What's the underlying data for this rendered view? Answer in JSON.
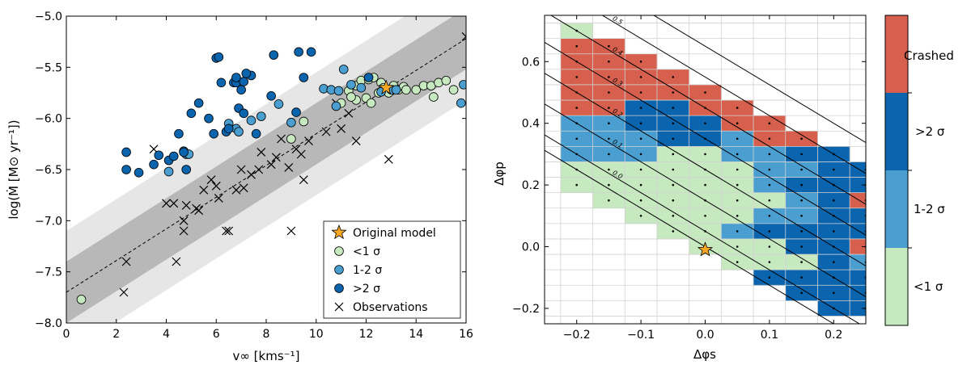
{
  "colors": {
    "lt1": "#c7e9c0",
    "s12": "#4a9fd0",
    "gt2": "#0a64ae",
    "crashed": "#d6604d",
    "band_outer": "#e6e6e6",
    "band_inner": "#b8b8b8",
    "star": "#f6a623"
  },
  "chart_data": [
    {
      "type": "scatter",
      "title": "",
      "xlabel": "v∞ [kms⁻¹]",
      "ylabel": "log(Ṁ [M⊙ yr⁻¹])",
      "xlim": [
        0,
        16
      ],
      "ylim": [
        -8.0,
        -5.0
      ],
      "xticks": [
        "0",
        "2",
        "4",
        "6",
        "8",
        "10",
        "12",
        "14",
        "16"
      ],
      "yticks": [
        "−8.0",
        "−7.5",
        "−7.0",
        "−6.5",
        "−6.0",
        "−5.5",
        "−5.0"
      ],
      "fit_line": {
        "x": [
          0,
          16
        ],
        "y": [
          -7.7,
          -5.22
        ]
      },
      "bands": {
        "inner_halfwidth": 0.3,
        "outer_halfwidth": 0.6
      },
      "legend": {
        "location": "lower right",
        "entries": [
          "Original model",
          "<1 σ",
          "1-2 σ",
          ">2 σ",
          "Observations"
        ]
      },
      "series": [
        {
          "name": "Original model",
          "marker": "star",
          "points": [
            [
              12.8,
              -5.7
            ]
          ]
        },
        {
          "name": "<1 σ",
          "marker": "circle",
          "points": [
            [
              0.6,
              -7.77
            ],
            [
              9.0,
              -6.2
            ],
            [
              9.5,
              -6.03
            ],
            [
              11.3,
              -5.73
            ],
            [
              11.6,
              -5.68
            ],
            [
              11.8,
              -5.63
            ],
            [
              12.0,
              -5.8
            ],
            [
              12.1,
              -5.62
            ],
            [
              12.3,
              -5.6
            ],
            [
              12.5,
              -5.75
            ],
            [
              12.6,
              -5.65
            ],
            [
              12.7,
              -5.7
            ],
            [
              13.0,
              -5.73
            ],
            [
              13.1,
              -5.68
            ],
            [
              13.3,
              -5.72
            ],
            [
              13.5,
              -5.69
            ],
            [
              13.6,
              -5.72
            ],
            [
              14.0,
              -5.72
            ],
            [
              14.3,
              -5.68
            ],
            [
              14.6,
              -5.68
            ],
            [
              14.7,
              -5.79
            ],
            [
              14.9,
              -5.65
            ],
            [
              15.2,
              -5.63
            ],
            [
              15.5,
              -5.72
            ],
            [
              11.0,
              -5.85
            ],
            [
              11.6,
              -5.82
            ],
            [
              12.2,
              -5.85
            ],
            [
              11.4,
              -5.79
            ],
            [
              12.9,
              -5.75
            ]
          ]
        },
        {
          "name": "1-2 σ",
          "marker": "circle",
          "points": [
            [
              4.1,
              -6.52
            ],
            [
              4.7,
              -6.32
            ],
            [
              4.8,
              -6.35
            ],
            [
              4.9,
              -6.35
            ],
            [
              6.5,
              -6.05
            ],
            [
              6.8,
              -6.1
            ],
            [
              6.9,
              -6.13
            ],
            [
              7.4,
              -6.02
            ],
            [
              7.8,
              -5.98
            ],
            [
              8.5,
              -5.86
            ],
            [
              9.0,
              -6.04
            ],
            [
              10.3,
              -5.71
            ],
            [
              10.6,
              -5.72
            ],
            [
              10.9,
              -5.73
            ],
            [
              11.1,
              -5.52
            ],
            [
              11.4,
              -5.67
            ],
            [
              11.8,
              -5.7
            ],
            [
              12.6,
              -5.74
            ],
            [
              13.0,
              -5.72
            ],
            [
              13.2,
              -5.72
            ],
            [
              15.8,
              -5.85
            ],
            [
              15.9,
              -5.67
            ],
            [
              10.8,
              -5.88
            ]
          ]
        },
        {
          "name": ">2 σ",
          "marker": "circle",
          "points": [
            [
              2.4,
              -6.33
            ],
            [
              2.4,
              -6.5
            ],
            [
              2.9,
              -6.53
            ],
            [
              3.5,
              -6.45
            ],
            [
              3.7,
              -6.36
            ],
            [
              4.1,
              -6.41
            ],
            [
              4.3,
              -6.37
            ],
            [
              4.5,
              -6.15
            ],
            [
              4.7,
              -6.33
            ],
            [
              4.8,
              -6.5
            ],
            [
              5.0,
              -5.95
            ],
            [
              5.3,
              -5.85
            ],
            [
              5.7,
              -6.0
            ],
            [
              5.9,
              -6.15
            ],
            [
              6.0,
              -5.41
            ],
            [
              6.1,
              -5.4
            ],
            [
              6.2,
              -5.65
            ],
            [
              6.4,
              -6.13
            ],
            [
              6.5,
              -6.1
            ],
            [
              6.7,
              -5.65
            ],
            [
              6.8,
              -5.65
            ],
            [
              6.8,
              -5.6
            ],
            [
              6.9,
              -5.9
            ],
            [
              7.1,
              -5.95
            ],
            [
              7.1,
              -5.64
            ],
            [
              7.4,
              -5.58
            ],
            [
              7.6,
              -6.15
            ],
            [
              8.2,
              -5.78
            ],
            [
              8.3,
              -5.38
            ],
            [
              9.2,
              -5.94
            ],
            [
              9.3,
              -5.35
            ],
            [
              9.5,
              -5.6
            ],
            [
              9.8,
              -5.35
            ],
            [
              12.1,
              -5.6
            ],
            [
              7.0,
              -5.72
            ],
            [
              7.2,
              -5.56
            ]
          ]
        },
        {
          "name": "Observations",
          "marker": "x",
          "points": [
            [
              2.3,
              -7.7
            ],
            [
              2.4,
              -7.4
            ],
            [
              3.5,
              -6.3
            ],
            [
              4.0,
              -6.83
            ],
            [
              4.3,
              -6.83
            ],
            [
              4.4,
              -7.4
            ],
            [
              4.7,
              -7.0
            ],
            [
              4.7,
              -7.1
            ],
            [
              4.8,
              -6.85
            ],
            [
              5.2,
              -6.88
            ],
            [
              5.3,
              -6.9
            ],
            [
              5.5,
              -6.7
            ],
            [
              5.8,
              -6.6
            ],
            [
              6.0,
              -6.66
            ],
            [
              6.1,
              -6.78
            ],
            [
              6.4,
              -7.1
            ],
            [
              6.5,
              -7.1
            ],
            [
              6.8,
              -6.7
            ],
            [
              7.0,
              -6.5
            ],
            [
              7.1,
              -6.68
            ],
            [
              7.4,
              -6.55
            ],
            [
              7.7,
              -6.5
            ],
            [
              7.8,
              -6.33
            ],
            [
              8.2,
              -6.45
            ],
            [
              8.4,
              -6.38
            ],
            [
              8.6,
              -6.2
            ],
            [
              8.9,
              -6.48
            ],
            [
              9.0,
              -7.1
            ],
            [
              9.2,
              -6.3
            ],
            [
              9.4,
              -6.35
            ],
            [
              9.5,
              -6.6
            ],
            [
              9.7,
              -6.22
            ],
            [
              10.4,
              -6.13
            ],
            [
              10.8,
              -5.85
            ],
            [
              11.0,
              -6.1
            ],
            [
              11.3,
              -5.95
            ],
            [
              11.6,
              -6.22
            ],
            [
              12.9,
              -6.4
            ],
            [
              16.0,
              -5.2
            ]
          ]
        }
      ]
    },
    {
      "type": "heatmap",
      "title": "",
      "xlabel": "Δφs",
      "ylabel": "Δφp",
      "xlim": [
        -0.25,
        0.25
      ],
      "ylim": [
        -0.25,
        0.75
      ],
      "xticks": [
        "−0.2",
        "−0.1",
        "0.0",
        "0.1",
        "0.2"
      ],
      "yticks": [
        "−0.2",
        "0.0",
        "0.2",
        "0.4",
        "0.6"
      ],
      "cell_size": 0.05,
      "original_model": [
        0.0,
        -0.01
      ],
      "colorbar_labels": [
        "<1 σ",
        "1-2 σ",
        ">2 σ",
        "Crashed"
      ],
      "contour_labels": [
        "0.0",
        "0.1",
        "0.2",
        "0.3",
        "0.4",
        "0.5"
      ],
      "contour_slope": -1.25,
      "rows": [
        {
          "phi_p": 0.7,
          "start": -0.2,
          "classes": "0"
        },
        {
          "phi_p": 0.65,
          "start": -0.2,
          "classes": "33"
        },
        {
          "phi_p": 0.6,
          "start": -0.2,
          "classes": "333"
        },
        {
          "phi_p": 0.55,
          "start": -0.2,
          "classes": "3333"
        },
        {
          "phi_p": 0.5,
          "start": -0.2,
          "classes": "33333"
        },
        {
          "phi_p": 0.45,
          "start": -0.2,
          "classes": "332233"
        },
        {
          "phi_p": 0.4,
          "start": -0.2,
          "classes": "1122233"
        },
        {
          "phi_p": 0.35,
          "start": -0.2,
          "classes": "11122133"
        },
        {
          "phi_p": 0.3,
          "start": -0.2,
          "classes": "111001122"
        },
        {
          "phi_p": 0.25,
          "start": -0.2,
          "classes": "0000001122"
        },
        {
          "phi_p": 0.2,
          "start": -0.2,
          "classes": "0000001222"
        },
        {
          "phi_p": 0.15,
          "start": -0.15,
          "classes": "000000123"
        },
        {
          "phi_p": 0.1,
          "start": -0.1,
          "classes": "00001122"
        },
        {
          "phi_p": 0.05,
          "start": -0.05,
          "classes": "0012222"
        },
        {
          "phi_p": 0.0,
          "start": 0.0,
          "classes": "000223"
        },
        {
          "phi_p": -0.05,
          "start": 0.05,
          "classes": "00021"
        },
        {
          "phi_p": -0.1,
          "start": 0.1,
          "classes": "2222"
        },
        {
          "phi_p": -0.15,
          "start": 0.15,
          "classes": "222"
        },
        {
          "phi_p": -0.2,
          "start": 0.2,
          "classes": "22"
        }
      ]
    }
  ]
}
